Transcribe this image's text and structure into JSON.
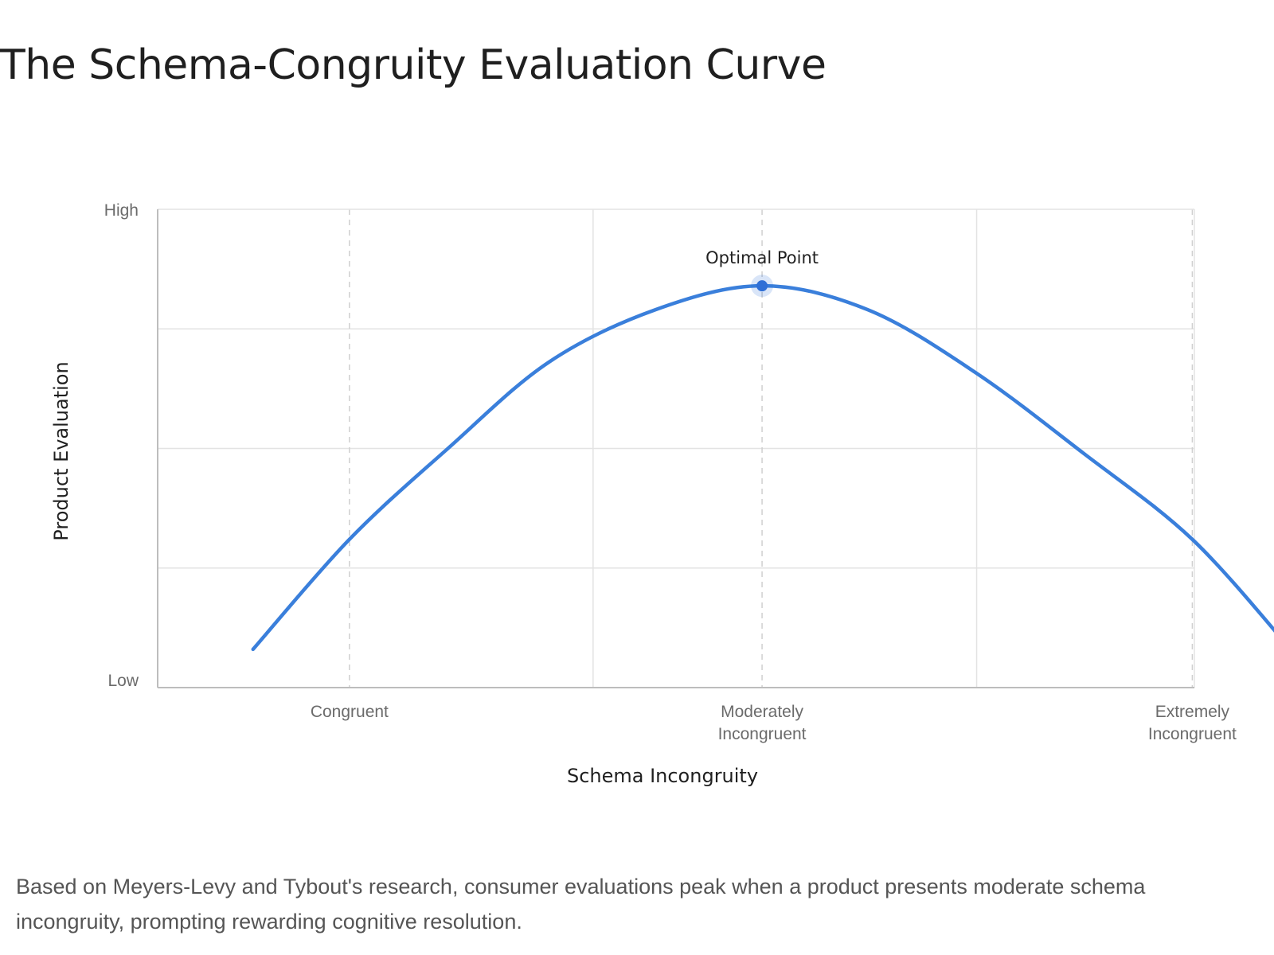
{
  "title": "The Schema-Congruity Evaluation Curve",
  "caption": "Based on Meyers-Levy and Tybout's research, consumer evaluations peak when a product presents moderate schema incongruity, prompting rewarding cognitive resolution.",
  "chart_data": {
    "type": "line",
    "xlabel": "Schema Incongruity",
    "ylabel": "Product Evaluation",
    "xlim": [
      0,
      10
    ],
    "ylim": [
      0,
      10
    ],
    "grid": true,
    "x_ticks": [
      {
        "x": 1.85,
        "label": [
          "Congruent"
        ]
      },
      {
        "x": 5.83,
        "label": [
          "Moderately",
          "Incongruent"
        ]
      },
      {
        "x": 9.98,
        "label": [
          "Extremely",
          "Incongruent"
        ]
      }
    ],
    "y_ticks": [
      {
        "y": 10,
        "label": "High"
      },
      {
        "y": 0,
        "label": "Low"
      }
    ],
    "series": [
      {
        "color": "#3a7fdb",
        "x": [
          0.92,
          1.85,
          2.8,
          3.77,
          4.8,
          5.83,
          6.85,
          7.88,
          8.93,
          9.98,
          10.93
        ],
        "y": [
          0.8,
          3.1,
          5.0,
          6.8,
          7.9,
          8.4,
          7.9,
          6.6,
          4.9,
          3.1,
          0.8
        ]
      }
    ],
    "annotations": [
      {
        "x": 5.83,
        "y": 8.4,
        "text": "Optimal Point",
        "color": "#2f6fd6"
      }
    ]
  }
}
